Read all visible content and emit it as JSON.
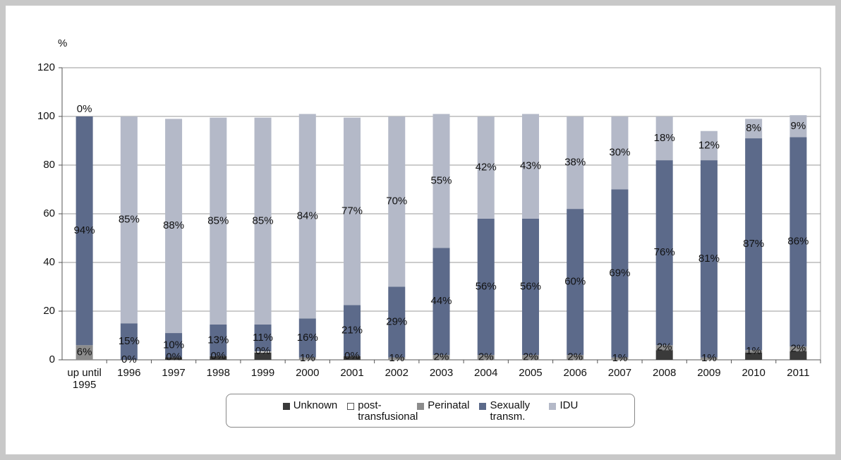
{
  "chart_data": {
    "type": "stacked_bar",
    "y_axis_label": "%",
    "categories": [
      "up until 1995",
      "1996",
      "1997",
      "1998",
      "1999",
      "2000",
      "2001",
      "2002",
      "2003",
      "2004",
      "2005",
      "2006",
      "2007",
      "2008",
      "2009",
      "2010",
      "2011"
    ],
    "series": [
      {
        "name": "Unknown",
        "color": "#3a3a3a",
        "values": [
          0,
          0,
          1,
          1.5,
          3,
          0,
          1.5,
          0,
          0,
          0,
          0,
          0,
          0,
          4,
          0,
          3,
          3.5
        ]
      },
      {
        "name": "post-transfusional",
        "color": "#ffffff",
        "values": [
          0,
          0,
          0,
          0,
          0.5,
          0,
          0,
          0,
          0,
          0,
          0,
          0,
          0,
          0,
          0,
          0,
          0
        ]
      },
      {
        "name": "Perinatal",
        "color": "#8c8c8c",
        "values": [
          6,
          0,
          0,
          0,
          0,
          1,
          0,
          1,
          2,
          2,
          2,
          2,
          1,
          2,
          1,
          1,
          2
        ],
        "value_labels": [
          "6%",
          "0%",
          "0%",
          "0%",
          "0%",
          "1%",
          "0%",
          "1%",
          "2%",
          "2%",
          "2%",
          "2%",
          "1%",
          "2%",
          "1%",
          "1%",
          "2%"
        ]
      },
      {
        "name": "Sexually transm.",
        "color": "#5c6a8a",
        "values": [
          94,
          15,
          10,
          13,
          11,
          16,
          21,
          29,
          44,
          56,
          56,
          60,
          69,
          76,
          81,
          87,
          86
        ],
        "value_labels": [
          "94%",
          "15%",
          "10%",
          "13%",
          "11%",
          "16%",
          "21%",
          "29%",
          "44%",
          "56%",
          "56%",
          "60%",
          "69%",
          "76%",
          "81%",
          "87%",
          "86%"
        ]
      },
      {
        "name": "IDU",
        "color": "#b4b9c8",
        "values": [
          0,
          85,
          88,
          85,
          85,
          84,
          77,
          70,
          55,
          42,
          43,
          38,
          30,
          18,
          12,
          8,
          9
        ],
        "value_labels": [
          "0%",
          "85%",
          "88%",
          "85%",
          "85%",
          "84%",
          "77%",
          "70%",
          "55%",
          "42%",
          "43%",
          "38%",
          "30%",
          "18%",
          "12%",
          "8%",
          "9%"
        ]
      }
    ],
    "ylim": [
      0,
      120
    ],
    "yticks": [
      0,
      20,
      40,
      60,
      80,
      100,
      120
    ],
    "grid": true,
    "legend": "bottom"
  }
}
